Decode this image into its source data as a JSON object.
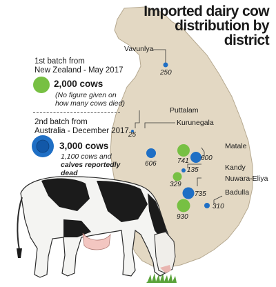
{
  "title": {
    "line1": "Imported dairy cow",
    "line2": "distribution by",
    "line3": "district"
  },
  "legend": {
    "batch1": {
      "heading_line1": "1st batch from",
      "heading_line2": "New Zealand - May 2017",
      "count": "2,000 cows",
      "note_line1": "(No figure given on",
      "note_line2": "how many cows died)",
      "color": "#77c043"
    },
    "batch2": {
      "heading_line1": "2nd batch from",
      "heading_line2": "Australia - December 2017",
      "count": "3,000 cows",
      "note_line1": "1,100 cows and",
      "note_line2": "calves reportedly",
      "note_line3": "dead",
      "color": "#1f6fc5"
    }
  },
  "districts": {
    "vavuniya": {
      "label": "Vavunlya",
      "value": "250",
      "batch": "2nd"
    },
    "puttalam": {
      "label": "Puttalam",
      "value": "25",
      "batch": "2nd"
    },
    "kurunegala": {
      "label": "Kurunegala",
      "value": "606",
      "batch": "2nd"
    },
    "matale_green": {
      "value": "741",
      "batch": "1st"
    },
    "matale": {
      "label": "Matale",
      "value": "600",
      "batch": "2nd"
    },
    "kandy": {
      "label": "Kandy",
      "value": "135",
      "batch": "2nd"
    },
    "kandy_green": {
      "value": "329",
      "batch": "1st"
    },
    "nuwara_eliya": {
      "label": "Nuwara-Eliya",
      "value": "735",
      "batch": "2nd"
    },
    "nuwara_eliya_green": {
      "value": "930",
      "batch": "1st"
    },
    "badulla": {
      "label": "Badulla",
      "value": "310",
      "batch": "2nd"
    }
  },
  "colors": {
    "map_land": "#e3d8c3",
    "map_edge": "#b5a88f",
    "green_dot": "#77c043",
    "blue_dot": "#1f6fc5"
  },
  "icons": [
    "cow-illustration",
    "sri-lanka-map"
  ]
}
